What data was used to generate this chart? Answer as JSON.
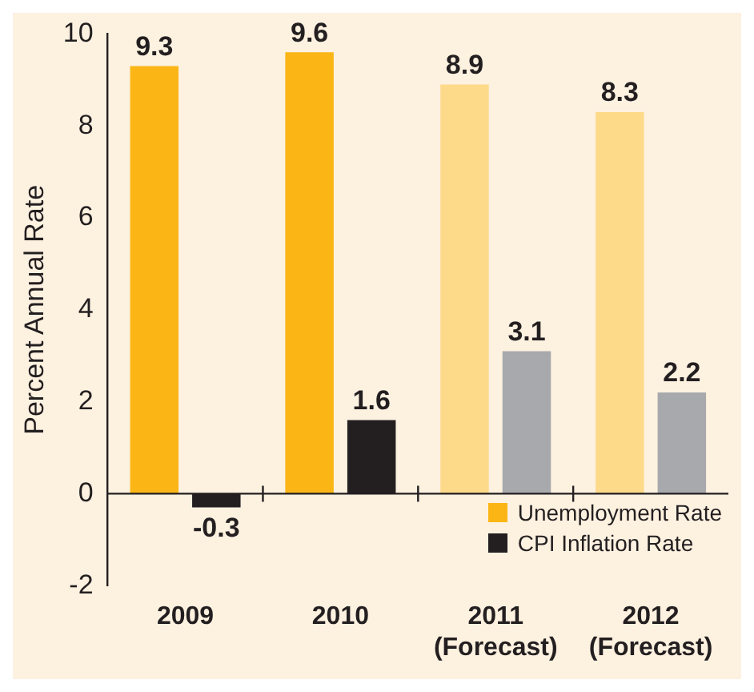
{
  "chart_data": {
    "type": "bar",
    "ylabel": "Percent Annual Rate",
    "categories": [
      "2009",
      "2010",
      "2011\n(Forecast)",
      "2012\n(Forecast)"
    ],
    "series": [
      {
        "name": "Unemployment Rate",
        "color": "#fbb616",
        "colors": [
          "#fbb616",
          "#fbb616",
          "#fdd98a",
          "#fdd98a"
        ],
        "values": [
          9.3,
          9.6,
          8.9,
          8.3
        ]
      },
      {
        "name": "CPI Inflation Rate",
        "color": "#231f20",
        "colors": [
          "#231f20",
          "#231f20",
          "#a7a9ac",
          "#a7a9ac"
        ],
        "values": [
          -0.3,
          1.6,
          3.1,
          2.2
        ]
      }
    ],
    "ylim": [
      -2,
      10
    ],
    "yticks": [
      -2,
      0,
      2,
      4,
      6,
      8,
      10
    ],
    "ref_lines": [
      {
        "axis": "y",
        "value": 0,
        "color": "#231f20"
      }
    ],
    "legend": "bottom right",
    "data_labels": true
  }
}
